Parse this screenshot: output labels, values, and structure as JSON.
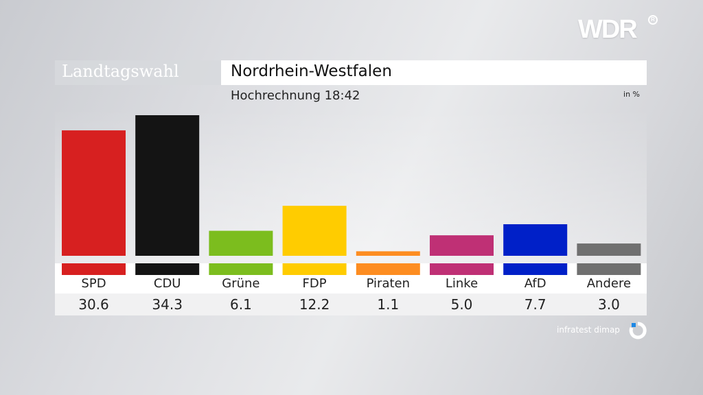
{
  "broadcaster": {
    "logo_text": "WDR"
  },
  "header": {
    "title_left": "Landtagswahl",
    "title_right": "Nordrhein-Westfalen",
    "subtitle": "Hochrechnung 18:42",
    "unit": "in %"
  },
  "source": {
    "text": "infratest dimap",
    "icon": "infratest-dimap-logo-icon"
  },
  "chart_data": {
    "type": "bar",
    "title": "Nordrhein-Westfalen",
    "subtitle": "Hochrechnung 18:42",
    "unit": "in %",
    "categories": [
      "SPD",
      "CDU",
      "Grüne",
      "FDP",
      "Piraten",
      "Linke",
      "AfD",
      "Andere"
    ],
    "values": [
      30.6,
      34.3,
      6.1,
      12.2,
      1.1,
      5.0,
      7.7,
      3.0
    ],
    "value_labels": [
      "30.6",
      "34.3",
      "6.1",
      "12.2",
      "1.1",
      "5.0",
      "7.7",
      "3.0"
    ],
    "colors": [
      "#d72020",
      "#141414",
      "#7cbd1e",
      "#ffcc00",
      "#fd8d21",
      "#bf3075",
      "#0020c8",
      "#707070"
    ],
    "ylim": [
      0,
      34.3
    ],
    "grid": false,
    "legend": "none"
  }
}
